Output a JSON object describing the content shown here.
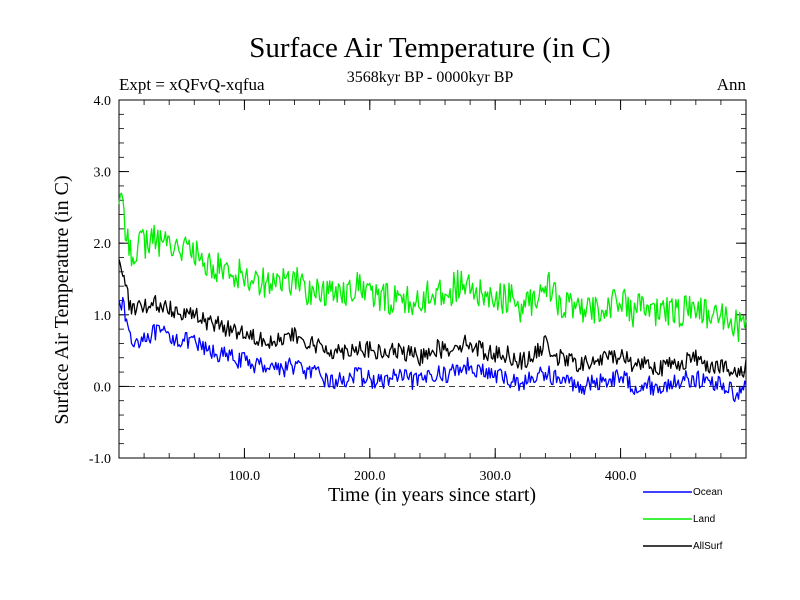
{
  "chart_data": {
    "type": "line",
    "title": "Surface Air Temperature (in C)",
    "subtitle_left": "Expt = xQFvQ-xqfua",
    "subtitle_center": "3568kyr BP - 0000kyr BP",
    "subtitle_right": "Ann",
    "xlabel": "Time (in years since start)",
    "ylabel": "Surface Air Temperature (in C)",
    "xlim": [
      0,
      500
    ],
    "ylim": [
      -1.0,
      4.0
    ],
    "x_ticks": [
      100,
      200,
      300,
      400
    ],
    "x_tick_labels": [
      "100.0",
      "200.0",
      "300.0",
      "400.0"
    ],
    "y_ticks": [
      -1,
      0,
      1,
      2,
      3,
      4
    ],
    "y_tick_labels": [
      "-1.0",
      "0.0",
      "1.0",
      "2.0",
      "3.0",
      "4.0"
    ],
    "reference_line": {
      "y": 0.0,
      "style": "dashed"
    },
    "legend_position": "bottom-right",
    "x": [
      0,
      5,
      10,
      20,
      30,
      40,
      50,
      60,
      70,
      80,
      90,
      100,
      110,
      120,
      130,
      140,
      150,
      160,
      170,
      180,
      190,
      200,
      210,
      220,
      230,
      240,
      250,
      260,
      270,
      280,
      290,
      300,
      310,
      320,
      330,
      340,
      350,
      360,
      370,
      380,
      390,
      400,
      410,
      420,
      430,
      440,
      450,
      460,
      470,
      480,
      490,
      500
    ],
    "series": [
      {
        "name": "Ocean",
        "color": "#0000ff",
        "values": [
          1.3,
          1.0,
          0.6,
          0.7,
          0.75,
          0.7,
          0.65,
          0.6,
          0.5,
          0.45,
          0.4,
          0.35,
          0.3,
          0.3,
          0.25,
          0.3,
          0.2,
          0.15,
          0.05,
          0.1,
          0.15,
          0.1,
          0.05,
          0.15,
          0.1,
          0.05,
          0.2,
          0.15,
          0.25,
          0.3,
          0.2,
          0.15,
          0.1,
          0.05,
          0.1,
          0.2,
          0.1,
          0.05,
          0.0,
          0.05,
          0.1,
          0.15,
          0.0,
          0.05,
          -0.05,
          0.05,
          0.1,
          0.1,
          0.05,
          0.05,
          -0.1,
          0.0
        ]
      },
      {
        "name": "Land",
        "color": "#00ee00",
        "values": [
          2.7,
          2.2,
          1.9,
          2.0,
          2.05,
          2.0,
          1.95,
          1.85,
          1.7,
          1.65,
          1.6,
          1.55,
          1.5,
          1.45,
          1.45,
          1.5,
          1.35,
          1.3,
          1.3,
          1.35,
          1.4,
          1.3,
          1.2,
          1.25,
          1.2,
          1.15,
          1.35,
          1.3,
          1.4,
          1.35,
          1.25,
          1.2,
          1.25,
          1.1,
          1.2,
          1.5,
          1.2,
          1.1,
          1.0,
          1.1,
          1.15,
          1.2,
          1.05,
          1.1,
          1.0,
          1.05,
          1.05,
          1.1,
          1.0,
          0.95,
          0.85,
          0.85
        ]
      },
      {
        "name": "AllSurf",
        "color": "#000000",
        "values": [
          1.85,
          1.4,
          1.05,
          1.1,
          1.15,
          1.1,
          1.05,
          1.0,
          0.9,
          0.85,
          0.8,
          0.75,
          0.7,
          0.65,
          0.65,
          0.7,
          0.6,
          0.55,
          0.5,
          0.5,
          0.55,
          0.5,
          0.45,
          0.5,
          0.45,
          0.4,
          0.55,
          0.5,
          0.6,
          0.6,
          0.5,
          0.45,
          0.45,
          0.35,
          0.4,
          0.6,
          0.4,
          0.35,
          0.3,
          0.35,
          0.4,
          0.45,
          0.3,
          0.35,
          0.25,
          0.3,
          0.35,
          0.4,
          0.3,
          0.3,
          0.15,
          0.25
        ]
      }
    ]
  }
}
